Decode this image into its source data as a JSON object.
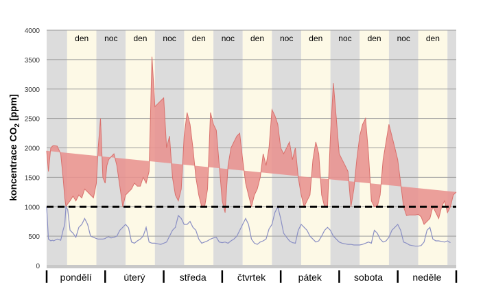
{
  "chart_data": {
    "type": "area",
    "title": "",
    "xlabel": "",
    "ylabel": "koncentrace CO",
    "ylabel_sub": "2",
    "ylabel_unit": "[ppm]",
    "ylim": [
      0,
      4000
    ],
    "yticks": [
      "0",
      "500",
      "1000",
      "1500",
      "2000",
      "2500",
      "3000",
      "3500",
      "4000"
    ],
    "ytick_values": [
      0,
      500,
      1000,
      1500,
      2000,
      2500,
      3000,
      3500,
      4000
    ],
    "grid": "horizontal",
    "legend": "none",
    "threshold": {
      "value": 1000,
      "style": "dashed",
      "color": "#000000"
    },
    "days": [
      "pondělí",
      "úterý",
      "středa",
      "čtvrtek",
      "pátek",
      "sobota",
      "neděle"
    ],
    "bands": [
      {
        "label": "",
        "kind": "night",
        "start": 0,
        "end": 0.35
      },
      {
        "label": "den",
        "kind": "day",
        "start": 0.35,
        "end": 0.85
      },
      {
        "label": "noc",
        "kind": "night",
        "start": 0.85,
        "end": 1.35
      },
      {
        "label": "den",
        "kind": "day",
        "start": 1.35,
        "end": 1.85
      },
      {
        "label": "noc",
        "kind": "night",
        "start": 1.85,
        "end": 2.35
      },
      {
        "label": "den",
        "kind": "day",
        "start": 2.35,
        "end": 2.85
      },
      {
        "label": "noc",
        "kind": "night",
        "start": 2.85,
        "end": 3.35
      },
      {
        "label": "den",
        "kind": "day",
        "start": 3.35,
        "end": 3.85
      },
      {
        "label": "noc",
        "kind": "night",
        "start": 3.85,
        "end": 4.35
      },
      {
        "label": "den",
        "kind": "day",
        "start": 4.35,
        "end": 4.85
      },
      {
        "label": "noc",
        "kind": "night",
        "start": 4.85,
        "end": 5.35
      },
      {
        "label": "den",
        "kind": "day",
        "start": 5.35,
        "end": 5.85
      },
      {
        "label": "noc",
        "kind": "night",
        "start": 5.85,
        "end": 6.35
      },
      {
        "label": "den",
        "kind": "day",
        "start": 6.35,
        "end": 6.85
      },
      {
        "label": "",
        "kind": "night",
        "start": 6.85,
        "end": 7.0
      }
    ],
    "colors": {
      "fill": "#e8928f",
      "min_line": "#8a8fc4",
      "max_line": "#d9706c",
      "night": "#dcdcdc",
      "day": "#fdf9e6",
      "grid": "#9a9a9a",
      "axis_bar": "#c8c8c8"
    },
    "series": [
      {
        "x": [
          0.0,
          0.03,
          0.07,
          0.1,
          0.12,
          0.18,
          0.24,
          0.28,
          0.31,
          0.33,
          0.36,
          0.4,
          0.45,
          0.5,
          0.55,
          0.6,
          0.65,
          0.7,
          0.75,
          0.8,
          0.85,
          0.88,
          0.92,
          0.96,
          1.0,
          1.03,
          1.06,
          1.1,
          1.15,
          1.2,
          1.25,
          1.3,
          1.35,
          1.4,
          1.45,
          1.5,
          1.55,
          1.6,
          1.65,
          1.7,
          1.75,
          1.8,
          1.85,
          1.9,
          1.95,
          2.0,
          2.05,
          2.1,
          2.15,
          2.2,
          2.25,
          2.3,
          2.35,
          2.4,
          2.45,
          2.5,
          2.55,
          2.6,
          2.65,
          2.7,
          2.75,
          2.8,
          2.85,
          2.9,
          2.95,
          3.0,
          3.05,
          3.1,
          3.15,
          3.2,
          3.25,
          3.3,
          3.35,
          3.4,
          3.45,
          3.5,
          3.55,
          3.6,
          3.65,
          3.7,
          3.75,
          3.8,
          3.85,
          3.9,
          3.95,
          4.0,
          4.05,
          4.1,
          4.15,
          4.2,
          4.25,
          4.3,
          4.35,
          4.4,
          4.45,
          4.5,
          4.55,
          4.6,
          4.65,
          4.7,
          4.75,
          4.8,
          4.85,
          4.9,
          4.95,
          5.0,
          5.05,
          5.1,
          5.15,
          5.2,
          5.25,
          5.3,
          5.35,
          5.4,
          5.45,
          5.5,
          5.55,
          5.6,
          5.65,
          5.7,
          5.75,
          5.8,
          5.85,
          5.9,
          5.95,
          6.0,
          6.05,
          6.1,
          6.15,
          6.2,
          6.25,
          6.3,
          6.35,
          6.4,
          6.45,
          6.5,
          6.55,
          6.6,
          6.65,
          6.7,
          6.75,
          6.8,
          6.85,
          6.9,
          6.95,
          7.0
        ],
        "max": [
          1950,
          1600,
          2000,
          2030,
          2040,
          2030,
          1900,
          1500,
          1150,
          1000,
          1050,
          1100,
          1180,
          1100,
          1200,
          1150,
          1300,
          1250,
          1200,
          1150,
          1400,
          2000,
          2500,
          1500,
          1400,
          1700,
          1800,
          1850,
          1900,
          1700,
          1350,
          1000,
          1200,
          1250,
          1300,
          1400,
          1350,
          1350,
          1500,
          1400,
          1600,
          3550,
          2700,
          2750,
          2800,
          2850,
          2000,
          2200,
          1500,
          1200,
          1100,
          1300,
          2200,
          2600,
          2400,
          2000,
          1500,
          1200,
          1000,
          1000,
          1300,
          2600,
          2400,
          2300,
          1700,
          1100,
          900,
          1700,
          2000,
          2100,
          2200,
          2250,
          1800,
          1400,
          1200,
          1000,
          1200,
          1300,
          1500,
          1900,
          1700,
          2000,
          2650,
          2550,
          2400,
          2000,
          1900,
          2000,
          2100,
          1800,
          2000,
          1500,
          1200,
          1000,
          1100,
          1200,
          1800,
          2100,
          1900,
          1200,
          1000,
          1000,
          2200,
          3100,
          2500,
          1900,
          1800,
          1700,
          1600,
          1000,
          1300,
          1800,
          2200,
          2400,
          2500,
          1900,
          1100,
          1000,
          1000,
          1200,
          1800,
          2100,
          2400,
          2200,
          2000,
          1800,
          1400,
          1000,
          850,
          860,
          860,
          860,
          870,
          830,
          700,
          750,
          800,
          1000,
          900,
          800,
          1000,
          1100,
          900,
          1000,
          1200,
          1250
        ],
        "min": [
          1000,
          450,
          420,
          430,
          420,
          450,
          430,
          600,
          700,
          1000,
          950,
          600,
          550,
          480,
          650,
          700,
          800,
          700,
          500,
          480,
          460,
          450,
          450,
          450,
          460,
          480,
          490,
          470,
          480,
          500,
          600,
          650,
          700,
          640,
          400,
          380,
          420,
          450,
          500,
          650,
          400,
          380,
          380,
          370,
          360,
          380,
          400,
          500,
          600,
          650,
          850,
          800,
          700,
          700,
          750,
          650,
          600,
          450,
          380,
          400,
          420,
          450,
          470,
          480,
          400,
          390,
          400,
          380,
          420,
          450,
          500,
          600,
          700,
          800,
          700,
          450,
          380,
          360,
          400,
          420,
          450,
          620,
          700,
          900,
          1000,
          800,
          550,
          480,
          420,
          390,
          380,
          600,
          700,
          650,
          600,
          500,
          450,
          400,
          420,
          500,
          600,
          650,
          600,
          500,
          450,
          400,
          380,
          370,
          360,
          360,
          350,
          350,
          350,
          360,
          380,
          400,
          380,
          600,
          550,
          450,
          400,
          420,
          480,
          600,
          650,
          700,
          600,
          400,
          380,
          350,
          340,
          330,
          330,
          340,
          400,
          600,
          650,
          450,
          420,
          420,
          410,
          400,
          420,
          390
        ]
      }
    ]
  }
}
